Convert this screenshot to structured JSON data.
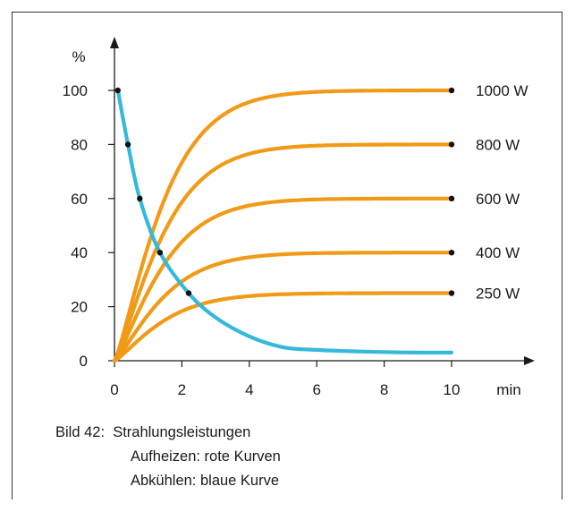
{
  "chart_data": {
    "type": "line",
    "ylabel": "%",
    "xlabel": "min",
    "xlim": [
      0,
      10
    ],
    "ylim": [
      0,
      100
    ],
    "x_ticks": [
      0,
      2,
      4,
      6,
      8,
      10
    ],
    "y_ticks": [
      0,
      20,
      40,
      60,
      80,
      100
    ],
    "grid": false,
    "series": [
      {
        "name": "1000 W",
        "color": "#f19a17",
        "kind": "heating",
        "final": 100,
        "tau": 1.6,
        "x": [
          0,
          1,
          2,
          3,
          4,
          5,
          6,
          7,
          8,
          9,
          10
        ],
        "values": [
          0,
          45,
          70,
          83,
          90,
          94,
          96,
          98,
          99,
          99.5,
          100
        ]
      },
      {
        "name": "800 W",
        "color": "#f19a17",
        "kind": "heating",
        "final": 80,
        "tau": 1.6,
        "x": [
          0,
          1,
          2,
          3,
          4,
          5,
          6,
          7,
          8,
          9,
          10
        ],
        "values": [
          0,
          36,
          56,
          66,
          72,
          75,
          77,
          78,
          79,
          79.5,
          80
        ]
      },
      {
        "name": "600 W",
        "color": "#f19a17",
        "kind": "heating",
        "final": 60,
        "tau": 1.6,
        "x": [
          0,
          1,
          2,
          3,
          4,
          5,
          6,
          7,
          8,
          9,
          10
        ],
        "values": [
          0,
          27,
          42,
          50,
          54,
          56,
          57.5,
          58.5,
          59,
          59.5,
          60
        ]
      },
      {
        "name": "400 W",
        "color": "#f19a17",
        "kind": "heating",
        "final": 40,
        "tau": 1.6,
        "x": [
          0,
          1,
          2,
          3,
          4,
          5,
          6,
          7,
          8,
          9,
          10
        ],
        "values": [
          0,
          18,
          28,
          33,
          36,
          37.5,
          38.5,
          39,
          39.5,
          39.8,
          40
        ]
      },
      {
        "name": "250 W",
        "color": "#f19a17",
        "kind": "heating",
        "final": 25,
        "tau": 1.6,
        "x": [
          0,
          1,
          2,
          3,
          4,
          5,
          6,
          7,
          8,
          9,
          10
        ],
        "values": [
          0,
          11,
          17.5,
          20.7,
          22.5,
          23.5,
          24.1,
          24.5,
          24.7,
          24.9,
          25
        ]
      },
      {
        "name": "",
        "color": "#36b8dc",
        "kind": "cooling",
        "x": [
          0.1,
          0.4,
          0.75,
          1.35,
          2.2,
          3,
          4,
          5,
          6,
          7,
          8,
          9,
          10
        ],
        "values": [
          100,
          80,
          60,
          40,
          25,
          16,
          9,
          5,
          4,
          3.5,
          3.2,
          3,
          3
        ]
      }
    ],
    "markers": [
      {
        "x": 10,
        "y": 100
      },
      {
        "x": 10,
        "y": 80
      },
      {
        "x": 10,
        "y": 60
      },
      {
        "x": 10,
        "y": 40
      },
      {
        "x": 10,
        "y": 25
      },
      {
        "x": 0.1,
        "y": 100
      },
      {
        "x": 0.4,
        "y": 80
      },
      {
        "x": 0.75,
        "y": 60
      },
      {
        "x": 1.35,
        "y": 40
      },
      {
        "x": 2.2,
        "y": 25
      }
    ]
  },
  "caption": {
    "line1": "Bild 42:  Strahlungsleistungen",
    "line2": "Aufheizen: rote Kurven",
    "line3": "Abkühlen: blaue Kurve"
  }
}
